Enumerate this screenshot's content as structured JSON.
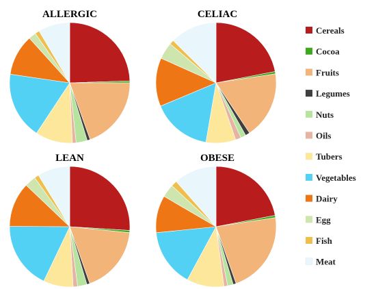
{
  "chart_data": [
    {
      "type": "pie",
      "title": "ALLERGIC",
      "slices": [
        {
          "category": "Cereals",
          "value": 24.5
        },
        {
          "category": "Cocoa",
          "value": 0.5
        },
        {
          "category": "Fruits",
          "value": 19.5
        },
        {
          "category": "Legumes",
          "value": 0.8
        },
        {
          "category": "Nuts",
          "value": 3.0
        },
        {
          "category": "Oils",
          "value": 1.0
        },
        {
          "category": "Tubers",
          "value": 10.0
        },
        {
          "category": "Vegetables",
          "value": 18.0
        },
        {
          "category": "Dairy",
          "value": 11.0
        },
        {
          "category": "Egg",
          "value": 2.0
        },
        {
          "category": "Fish",
          "value": 1.2
        },
        {
          "category": "Meat",
          "value": 8.5
        }
      ]
    },
    {
      "type": "pie",
      "title": "CELIAC",
      "slices": [
        {
          "category": "Cereals",
          "value": 22.0
        },
        {
          "category": "Cocoa",
          "value": 0.6
        },
        {
          "category": "Fruits",
          "value": 18.0
        },
        {
          "category": "Legumes",
          "value": 1.2
        },
        {
          "category": "Nuts",
          "value": 1.4
        },
        {
          "category": "Oils",
          "value": 1.5
        },
        {
          "category": "Tubers",
          "value": 8.0
        },
        {
          "category": "Vegetables",
          "value": 16.0
        },
        {
          "category": "Dairy",
          "value": 13.0
        },
        {
          "category": "Egg",
          "value": 4.5
        },
        {
          "category": "Fish",
          "value": 1.2
        },
        {
          "category": "Meat",
          "value": 12.6
        }
      ]
    },
    {
      "type": "pie",
      "title": "LEAN",
      "slices": [
        {
          "category": "Cereals",
          "value": 26.0
        },
        {
          "category": "Cocoa",
          "value": 0.6
        },
        {
          "category": "Fruits",
          "value": 18.0
        },
        {
          "category": "Legumes",
          "value": 0.8
        },
        {
          "category": "Nuts",
          "value": 2.5
        },
        {
          "category": "Oils",
          "value": 1.2
        },
        {
          "category": "Tubers",
          "value": 8.0
        },
        {
          "category": "Vegetables",
          "value": 18.0
        },
        {
          "category": "Dairy",
          "value": 12.0
        },
        {
          "category": "Egg",
          "value": 3.0
        },
        {
          "category": "Fish",
          "value": 1.2
        },
        {
          "category": "Meat",
          "value": 8.7
        }
      ]
    },
    {
      "type": "pie",
      "title": "OBESE",
      "slices": [
        {
          "category": "Cereals",
          "value": 22.0
        },
        {
          "category": "Cocoa",
          "value": 0.6
        },
        {
          "category": "Fruits",
          "value": 22.0
        },
        {
          "category": "Legumes",
          "value": 0.8
        },
        {
          "category": "Nuts",
          "value": 1.5
        },
        {
          "category": "Oils",
          "value": 1.0
        },
        {
          "category": "Tubers",
          "value": 10.0
        },
        {
          "category": "Vegetables",
          "value": 15.5
        },
        {
          "category": "Dairy",
          "value": 10.0
        },
        {
          "category": "Egg",
          "value": 3.5
        },
        {
          "category": "Fish",
          "value": 1.6
        },
        {
          "category": "Meat",
          "value": 11.5
        }
      ]
    }
  ],
  "legend": {
    "placement": "right",
    "items": [
      {
        "label": "Cereals",
        "color": "#b91c1c"
      },
      {
        "label": "Cocoa",
        "color": "#3ea91f"
      },
      {
        "label": "Fruits",
        "color": "#f2b478"
      },
      {
        "label": "Legumes",
        "color": "#3f3f3f"
      },
      {
        "label": "Nuts",
        "color": "#b6e39e"
      },
      {
        "label": "Oils",
        "color": "#e6b4a3"
      },
      {
        "label": "Tubers",
        "color": "#fce79a"
      },
      {
        "label": "Vegetables",
        "color": "#52d1f5"
      },
      {
        "label": "Dairy",
        "color": "#ef7615"
      },
      {
        "label": "Egg",
        "color": "#cfe5ae"
      },
      {
        "label": "Fish",
        "color": "#efbf4e"
      },
      {
        "label": "Meat",
        "color": "#e9f6fc"
      }
    ]
  }
}
